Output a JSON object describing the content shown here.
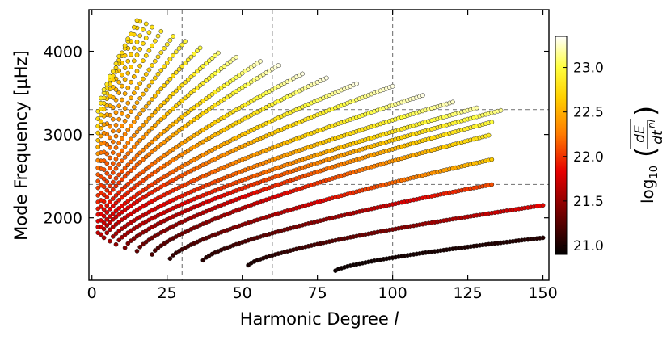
{
  "chart_data": {
    "type": "scatter",
    "title": "",
    "xlabel": "Harmonic Degree ",
    "xlabel_italic": "l",
    "ylabel": "Mode Frequency [μHz]",
    "xlim": [
      -1,
      152
    ],
    "ylim": [
      1250,
      4500
    ],
    "xticks": [
      0,
      25,
      50,
      75,
      100,
      125,
      150
    ],
    "yticks": [
      2000,
      3000,
      4000
    ],
    "x_tick_labels": [
      "0",
      "25",
      "50",
      "75",
      "100",
      "125",
      "150"
    ],
    "y_tick_labels": [
      "2000",
      "3000",
      "4000"
    ],
    "colorbar": {
      "label": "log10(dE/dt nl)",
      "label_main": "log",
      "label_sub": "10",
      "frac_top": "dE",
      "frac_bottom": "dt",
      "frac_sup": "nl",
      "range": [
        20.9,
        23.35
      ],
      "ticks": [
        21.0,
        21.5,
        22.0,
        22.5,
        23.0
      ],
      "tick_labels": [
        "21.0",
        "21.5",
        "22.0",
        "22.5",
        "23.0"
      ],
      "colormap": "hot",
      "colors": [
        "#000000",
        "#7a0000",
        "#e60000",
        "#ff7a00",
        "#ffd000",
        "#ffff40",
        "#ffffff"
      ]
    },
    "reference_lines": {
      "vertical_x": [
        30,
        60,
        100
      ],
      "horizontal_y": [
        3300,
        2400
      ],
      "style": "dashed",
      "color": "#808080"
    },
    "ridges": [
      {
        "l_start": 81,
        "l_end": 150,
        "f_start": 1365,
        "f_end": 1760,
        "v_start": 20.95,
        "v_end": 21.05
      },
      {
        "l_start": 52,
        "l_end": 150,
        "f_start": 1430,
        "f_end": 2150,
        "v_start": 21.0,
        "v_end": 21.85
      },
      {
        "l_start": 37,
        "l_end": 133,
        "f_start": 1490,
        "f_end": 2400,
        "v_start": 21.05,
        "v_end": 22.1
      },
      {
        "l_start": 26,
        "l_end": 133,
        "f_start": 1510,
        "f_end": 2700,
        "v_start": 21.1,
        "v_end": 22.65
      },
      {
        "l_start": 20,
        "l_end": 132,
        "f_start": 1560,
        "f_end": 2990,
        "v_start": 21.2,
        "v_end": 22.85
      },
      {
        "l_start": 15,
        "l_end": 133,
        "f_start": 1600,
        "f_end": 3150,
        "v_start": 21.3,
        "v_end": 23.0
      },
      {
        "l_start": 11,
        "l_end": 136,
        "f_start": 1640,
        "f_end": 3290,
        "v_start": 21.4,
        "v_end": 23.15
      },
      {
        "l_start": 8,
        "l_end": 128,
        "f_start": 1680,
        "f_end": 3320,
        "v_start": 21.5,
        "v_end": 23.2
      },
      {
        "l_start": 6,
        "l_end": 120,
        "f_start": 1720,
        "f_end": 3390,
        "v_start": 21.55,
        "v_end": 23.25
      },
      {
        "l_start": 4,
        "l_end": 110,
        "f_start": 1760,
        "f_end": 3470,
        "v_start": 21.6,
        "v_end": 23.3
      },
      {
        "l_start": 3,
        "l_end": 100,
        "f_start": 1800,
        "f_end": 3580,
        "v_start": 21.65,
        "v_end": 23.3
      },
      {
        "l_start": 2,
        "l_end": 88,
        "f_start": 1820,
        "f_end": 3610,
        "v_start": 21.7,
        "v_end": 23.3
      },
      {
        "l_start": 2,
        "l_end": 78,
        "f_start": 1890,
        "f_end": 3680,
        "v_start": 21.75,
        "v_end": 23.3
      },
      {
        "l_start": 2,
        "l_end": 70,
        "f_start": 1960,
        "f_end": 3730,
        "v_start": 21.8,
        "v_end": 23.3
      },
      {
        "l_start": 2,
        "l_end": 62,
        "f_start": 2040,
        "f_end": 3830,
        "v_start": 21.85,
        "v_end": 23.3
      },
      {
        "l_start": 2,
        "l_end": 56,
        "f_start": 2110,
        "f_end": 3880,
        "v_start": 21.9,
        "v_end": 23.25
      },
      {
        "l_start": 2,
        "l_end": 48,
        "f_start": 2190,
        "f_end": 3930,
        "v_start": 21.95,
        "v_end": 23.2
      },
      {
        "l_start": 2,
        "l_end": 42,
        "f_start": 2270,
        "f_end": 3980,
        "v_start": 22.0,
        "v_end": 23.1
      },
      {
        "l_start": 2,
        "l_end": 36,
        "f_start": 2360,
        "f_end": 4040,
        "v_start": 22.05,
        "v_end": 23.0
      },
      {
        "l_start": 2,
        "l_end": 31,
        "f_start": 2440,
        "f_end": 4120,
        "v_start": 22.1,
        "v_end": 22.95
      },
      {
        "l_start": 2,
        "l_end": 27,
        "f_start": 2520,
        "f_end": 4180,
        "v_start": 22.15,
        "v_end": 22.9
      },
      {
        "l_start": 2,
        "l_end": 23,
        "f_start": 2600,
        "f_end": 4240,
        "v_start": 22.2,
        "v_end": 22.85
      },
      {
        "l_start": 2,
        "l_end": 20,
        "f_start": 2690,
        "f_end": 4290,
        "v_start": 22.3,
        "v_end": 22.8
      },
      {
        "l_start": 2,
        "l_end": 18,
        "f_start": 2770,
        "f_end": 4330,
        "v_start": 22.4,
        "v_end": 22.75
      },
      {
        "l_start": 2,
        "l_end": 16,
        "f_start": 2850,
        "f_end": 4360,
        "v_start": 22.5,
        "v_end": 22.7
      },
      {
        "l_start": 2,
        "l_end": 15,
        "f_start": 2930,
        "f_end": 4370,
        "v_start": 22.6,
        "v_end": 22.7
      },
      {
        "l_start": 2,
        "l_end": 12,
        "f_start": 3020,
        "f_end": 4150,
        "v_start": 22.65,
        "v_end": 22.75
      },
      {
        "l_start": 2,
        "l_end": 9,
        "f_start": 3100,
        "f_end": 3940,
        "v_start": 22.7,
        "v_end": 22.8
      },
      {
        "l_start": 2,
        "l_end": 6,
        "f_start": 3190,
        "f_end": 3700,
        "v_start": 22.75,
        "v_end": 22.85
      },
      {
        "l_start": 2,
        "l_end": 4,
        "f_start": 3280,
        "f_end": 3540,
        "v_start": 22.8,
        "v_end": 22.9
      }
    ]
  }
}
